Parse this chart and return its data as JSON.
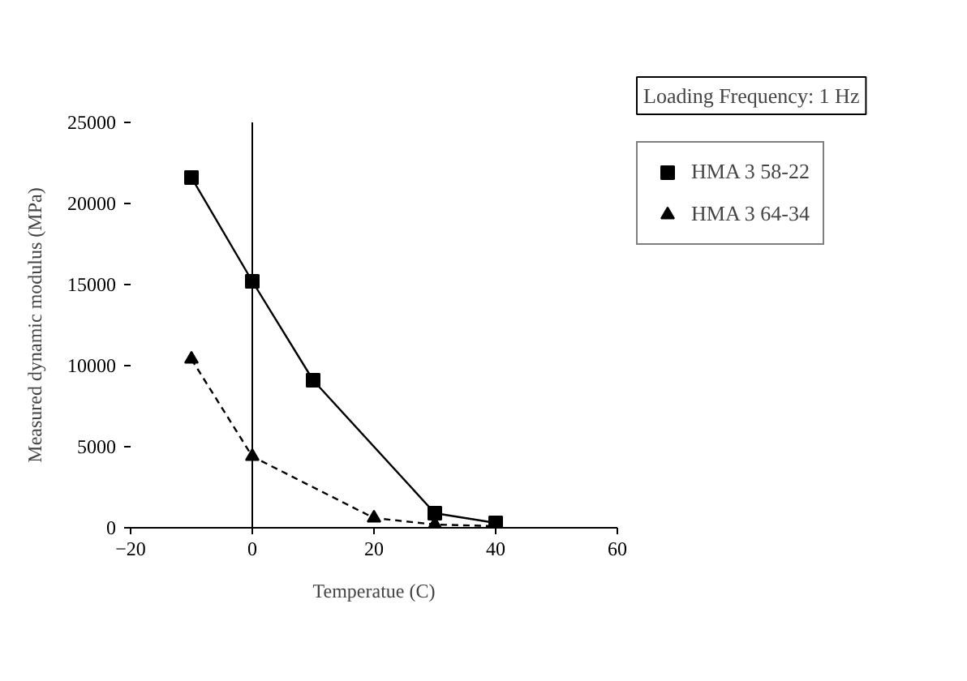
{
  "chart_data": {
    "type": "line",
    "xlabel": "Temperatue (C)",
    "ylabel": "Measured dynamic modulus (MPa)",
    "annotations": [
      "Loading Frequency: 1 Hz"
    ],
    "x": [
      -10,
      0,
      10,
      30,
      40
    ],
    "series": [
      {
        "name": "HMA 3 58-22",
        "color": "#000000",
        "marker": "square",
        "line_style": "solid",
        "values": [
          21600,
          15200,
          9100,
          900,
          300
        ]
      },
      {
        "name": "HMA 3 64-34",
        "color": "#000000",
        "marker": "triangle",
        "line_style": "dashed",
        "x": [
          -10,
          0,
          20,
          30,
          40
        ],
        "values": [
          10400,
          4400,
          600,
          200,
          100
        ]
      }
    ],
    "xlim": [
      -20,
      60
    ],
    "ylim": [
      0,
      25000
    ],
    "xticks": [
      -20,
      0,
      20,
      40,
      60
    ],
    "yticks": [
      0,
      5000,
      10000,
      15000,
      20000,
      25000
    ],
    "ref_lines": [
      {
        "axis": "x",
        "value": 0,
        "color": "#000000",
        "line_style": "solid"
      }
    ],
    "grid": false,
    "legend": "right"
  }
}
